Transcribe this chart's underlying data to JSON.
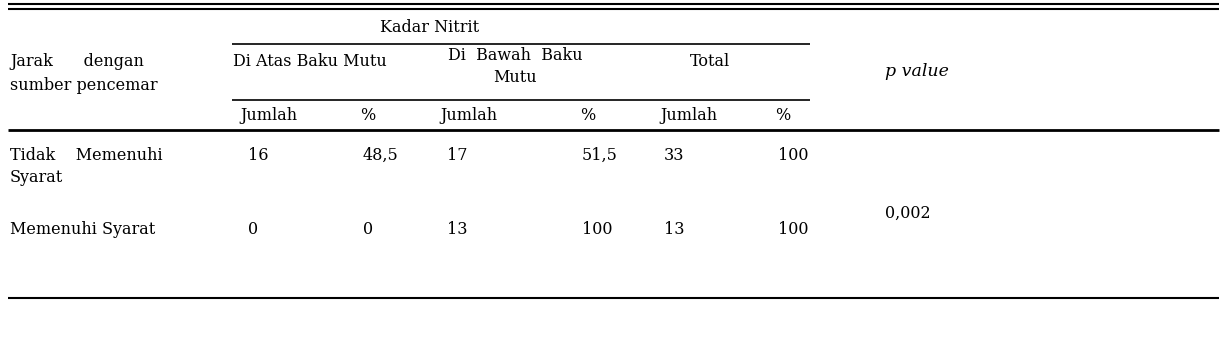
{
  "header_kadar_nitrit": "Kadar Nitrit",
  "col1_header_line1": "Jarak      dengan",
  "col1_header_line2": "sumber pencemar",
  "col2_header": "Di Atas Baku Mutu",
  "col3_header_line1": "Di  Bawah  Baku",
  "col3_header_line2": "Mutu",
  "col4_header": "Total",
  "col5_header": "p value",
  "subheader_jumlah": "Jumlah",
  "subheader_pct": "%",
  "row1_label_line1": "Tidak    Memenuhi",
  "row1_label_line2": "Syarat",
  "row2_label": "Memenuhi Syarat",
  "row1_data": [
    "16",
    "48,5",
    "17",
    "51,5",
    "33",
    "100"
  ],
  "row2_data": [
    "0",
    "0",
    "13",
    "100",
    "13",
    "100"
  ],
  "p_value": "0,002",
  "bg_color": "#ffffff",
  "text_color": "#000000",
  "line_color": "#000000",
  "font_size": 11.5,
  "font_family": "serif",
  "fig_width": 12.31,
  "fig_height": 3.55,
  "dpi": 100
}
